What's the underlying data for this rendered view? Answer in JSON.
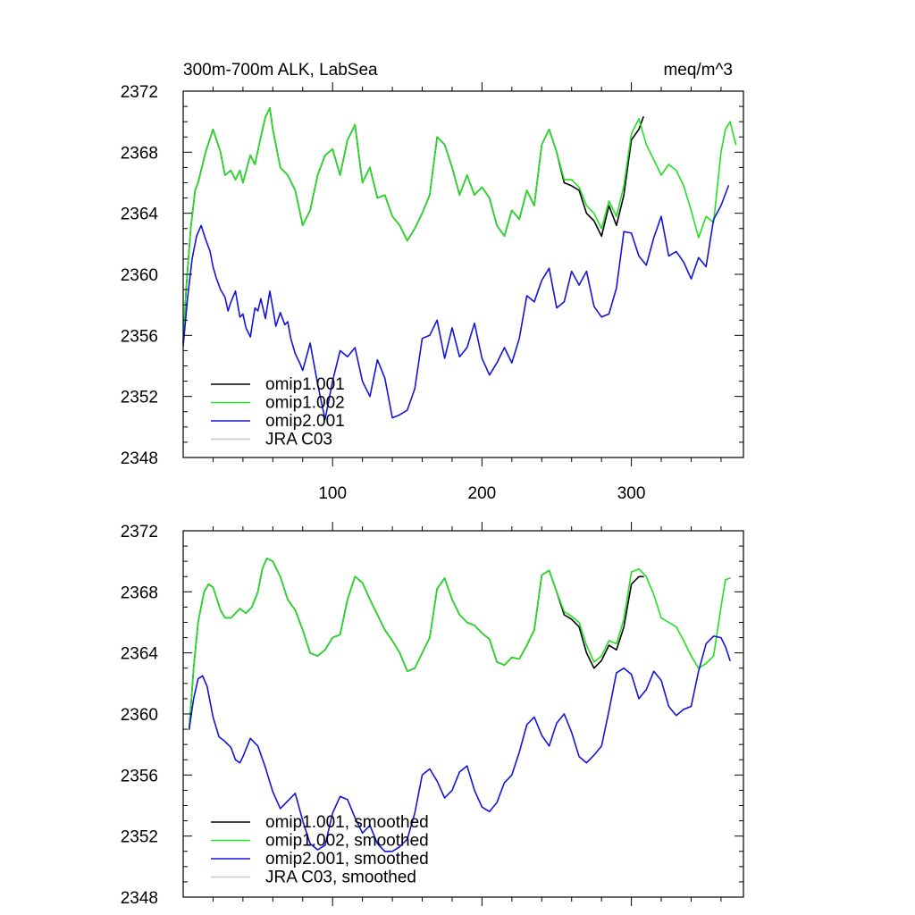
{
  "chart_data": [
    {
      "type": "line",
      "title": "300m-700m ALK, LabSea",
      "units": "meq/m^3",
      "xlim": [
        0,
        375
      ],
      "ylim": [
        2348,
        2372
      ],
      "xticks": [
        100,
        200,
        300
      ],
      "xtick_labels": [
        "100",
        "200",
        "300"
      ],
      "yticks": [
        2348,
        2352,
        2356,
        2360,
        2364,
        2368,
        2372
      ],
      "ytick_labels": [
        "2348",
        "2352",
        "2356",
        "2360",
        "2364",
        "2368",
        "2372"
      ],
      "legend": "bottom-left",
      "series": [
        {
          "name": "omip1.001",
          "color": "#000000",
          "x": [
            0,
            2,
            5,
            8,
            10,
            15,
            20,
            25,
            28,
            32,
            35,
            38,
            40,
            45,
            48,
            52,
            55,
            58,
            60,
            65,
            70,
            75,
            80,
            85,
            90,
            95,
            100,
            105,
            110,
            115,
            120,
            125,
            130,
            135,
            140,
            145,
            150,
            155,
            160,
            165,
            170,
            175,
            180,
            185,
            190,
            195,
            200,
            205,
            210,
            215,
            220,
            225,
            230,
            235,
            240,
            245,
            250,
            255,
            260,
            265,
            270,
            275,
            280,
            285,
            290,
            295,
            300,
            305,
            308
          ],
          "y": [
            2355.5,
            2359,
            2363,
            2365.5,
            2366,
            2368,
            2369.5,
            2368,
            2366.5,
            2366.8,
            2366.2,
            2366.8,
            2366,
            2367.8,
            2367.2,
            2369,
            2370.3,
            2370.9,
            2369.5,
            2367,
            2366.5,
            2365.5,
            2363.2,
            2364.2,
            2366.5,
            2367.8,
            2368.2,
            2366.5,
            2368.8,
            2369.8,
            2366,
            2367,
            2365,
            2365.2,
            2363.8,
            2363.2,
            2362.2,
            2363,
            2364,
            2365.2,
            2369,
            2368.5,
            2367,
            2365.2,
            2366.5,
            2365.2,
            2365.7,
            2365,
            2363.2,
            2362.5,
            2364.2,
            2363.6,
            2365.5,
            2364.5,
            2368.5,
            2369.5,
            2368,
            2366,
            2365.8,
            2365.5,
            2364,
            2363.5,
            2362.5,
            2364.5,
            2363.2,
            2365.2,
            2368.8,
            2369.5,
            2370.3
          ]
        },
        {
          "name": "omip1.002",
          "color": "#22e022",
          "x": [
            0,
            2,
            5,
            8,
            10,
            15,
            20,
            25,
            28,
            32,
            35,
            38,
            40,
            45,
            48,
            52,
            55,
            58,
            60,
            65,
            70,
            75,
            80,
            85,
            90,
            95,
            100,
            105,
            110,
            115,
            120,
            125,
            130,
            135,
            140,
            145,
            150,
            155,
            160,
            165,
            170,
            175,
            180,
            185,
            190,
            195,
            200,
            205,
            210,
            215,
            220,
            225,
            230,
            235,
            240,
            245,
            250,
            255,
            260,
            265,
            270,
            275,
            280,
            285,
            290,
            295,
            300,
            305,
            310,
            315,
            320,
            325,
            330,
            335,
            340,
            345,
            350,
            355,
            360,
            363,
            366,
            370
          ],
          "y": [
            2355.5,
            2359,
            2363,
            2365.5,
            2366,
            2368,
            2369.5,
            2368,
            2366.5,
            2366.8,
            2366.2,
            2366.8,
            2366,
            2367.8,
            2367.2,
            2369,
            2370.3,
            2370.9,
            2369.5,
            2367,
            2366.5,
            2365.5,
            2363.2,
            2364.2,
            2366.5,
            2367.8,
            2368.2,
            2366.5,
            2368.8,
            2369.8,
            2366,
            2367,
            2365,
            2365.2,
            2363.8,
            2363.2,
            2362.2,
            2363,
            2364,
            2365.2,
            2369,
            2368.5,
            2367,
            2365.2,
            2366.5,
            2365.2,
            2365.7,
            2365,
            2363.2,
            2362.5,
            2364.2,
            2363.6,
            2365.5,
            2364.5,
            2368.5,
            2369.5,
            2368,
            2366.2,
            2366.2,
            2365.7,
            2364.5,
            2364,
            2363,
            2364.8,
            2363.8,
            2365.8,
            2369.2,
            2370.2,
            2368.5,
            2367.5,
            2366.5,
            2367.2,
            2366.8,
            2365.8,
            2364.2,
            2362.4,
            2363.8,
            2363.4,
            2368,
            2369.5,
            2370,
            2368.5
          ]
        },
        {
          "name": "omip2.001",
          "color": "#1414d8",
          "x": [
            0,
            3,
            6,
            9,
            12,
            15,
            18,
            20,
            22,
            25,
            28,
            30,
            32,
            35,
            38,
            40,
            42,
            45,
            48,
            50,
            52,
            55,
            58,
            60,
            62,
            65,
            68,
            70,
            72,
            75,
            78,
            80,
            85,
            90,
            95,
            100,
            105,
            110,
            115,
            120,
            125,
            130,
            135,
            140,
            145,
            150,
            155,
            160,
            165,
            170,
            175,
            180,
            185,
            190,
            195,
            200,
            205,
            210,
            215,
            220,
            225,
            230,
            235,
            240,
            245,
            250,
            255,
            260,
            265,
            270,
            275,
            280,
            285,
            290,
            295,
            300,
            305,
            310,
            315,
            320,
            325,
            330,
            335,
            340,
            345,
            350,
            355,
            360,
            365
          ],
          "y": [
            2355.3,
            2358.5,
            2361,
            2362.5,
            2363.2,
            2362.3,
            2361.5,
            2360.5,
            2359.8,
            2359,
            2358.5,
            2357.6,
            2358.2,
            2358.9,
            2357.2,
            2357.4,
            2356.5,
            2355.9,
            2357.8,
            2357.6,
            2358.4,
            2357.1,
            2358.9,
            2357.8,
            2356.6,
            2357.5,
            2356.7,
            2356.9,
            2355.8,
            2354.8,
            2354.2,
            2353.7,
            2355.5,
            2352.8,
            2350.5,
            2353,
            2355,
            2354.6,
            2355.2,
            2353,
            2352,
            2354.4,
            2353.2,
            2350.6,
            2350.8,
            2351.1,
            2352.5,
            2355.8,
            2356,
            2357,
            2354.5,
            2356.5,
            2354.6,
            2355.2,
            2356.8,
            2354.5,
            2353.4,
            2354.2,
            2355.2,
            2354.2,
            2355.8,
            2358.6,
            2358.2,
            2359.6,
            2360.4,
            2357.8,
            2358.2,
            2360.2,
            2359.3,
            2360.2,
            2357.9,
            2357.2,
            2357.4,
            2359.1,
            2362.8,
            2362.7,
            2361.2,
            2360.6,
            2362.4,
            2363.8,
            2361.2,
            2361.5,
            2360.8,
            2359.7,
            2361.1,
            2360.5,
            2363.6,
            2364.5,
            2365.8
          ]
        },
        {
          "name": "JRA C03",
          "color": "#c8c8c8",
          "x": [],
          "y": []
        }
      ]
    },
    {
      "type": "line",
      "title": "",
      "units": "",
      "xlim": [
        0,
        375
      ],
      "ylim": [
        2348,
        2372
      ],
      "xticks": [
        100,
        200,
        300
      ],
      "xtick_labels": [],
      "yticks": [
        2348,
        2352,
        2356,
        2360,
        2364,
        2368,
        2372
      ],
      "ytick_labels": [
        "2348",
        "2352",
        "2356",
        "2360",
        "2364",
        "2368",
        "2372"
      ],
      "legend": "bottom-left",
      "series": [
        {
          "name": "omip1.001, smoothed",
          "color": "#000000",
          "x": [
            4,
            7,
            10,
            14,
            17,
            20,
            25,
            28,
            32,
            35,
            38,
            42,
            46,
            50,
            53,
            56,
            60,
            65,
            70,
            75,
            80,
            85,
            90,
            95,
            100,
            105,
            110,
            115,
            120,
            125,
            130,
            135,
            140,
            145,
            150,
            155,
            160,
            165,
            170,
            175,
            180,
            185,
            190,
            195,
            200,
            205,
            210,
            215,
            220,
            225,
            230,
            235,
            240,
            245,
            250,
            255,
            260,
            265,
            270,
            275,
            280,
            285,
            290,
            295,
            300,
            305,
            308
          ],
          "y": [
            2359,
            2363,
            2366,
            2368,
            2368.5,
            2368.3,
            2366.8,
            2366.3,
            2366.3,
            2366.6,
            2366.9,
            2366.6,
            2367,
            2368,
            2369.5,
            2370.2,
            2370,
            2369,
            2367.5,
            2366.8,
            2365.5,
            2364,
            2363.8,
            2364.2,
            2365,
            2365.2,
            2367.5,
            2369,
            2368.6,
            2367.5,
            2366.5,
            2365.5,
            2364.8,
            2364,
            2362.8,
            2363,
            2364,
            2365,
            2368.2,
            2368.9,
            2367.5,
            2366.5,
            2366,
            2365.8,
            2365.3,
            2364.9,
            2363.4,
            2363.2,
            2363.7,
            2363.6,
            2364.5,
            2365.5,
            2369.1,
            2369.4,
            2368,
            2366.5,
            2366.2,
            2365.7,
            2364,
            2363,
            2363.5,
            2364.5,
            2364.2,
            2365.7,
            2368.5,
            2369,
            2369
          ]
        },
        {
          "name": "omip1.002, smoothed",
          "color": "#22e022",
          "x": [
            4,
            7,
            10,
            14,
            17,
            20,
            25,
            28,
            32,
            35,
            38,
            42,
            46,
            50,
            53,
            56,
            60,
            65,
            70,
            75,
            80,
            85,
            90,
            95,
            100,
            105,
            110,
            115,
            120,
            125,
            130,
            135,
            140,
            145,
            150,
            155,
            160,
            165,
            170,
            175,
            180,
            185,
            190,
            195,
            200,
            205,
            210,
            215,
            220,
            225,
            230,
            235,
            240,
            245,
            250,
            255,
            260,
            265,
            270,
            275,
            280,
            285,
            290,
            295,
            300,
            305,
            310,
            315,
            320,
            325,
            330,
            335,
            340,
            345,
            350,
            355,
            360,
            363,
            366
          ],
          "y": [
            2359,
            2363,
            2366,
            2368,
            2368.5,
            2368.3,
            2366.8,
            2366.3,
            2366.3,
            2366.6,
            2366.9,
            2366.6,
            2367,
            2368,
            2369.5,
            2370.2,
            2370,
            2369,
            2367.5,
            2366.8,
            2365.5,
            2364,
            2363.8,
            2364.2,
            2365,
            2365.2,
            2367.5,
            2369,
            2368.6,
            2367.5,
            2366.5,
            2365.5,
            2364.8,
            2364,
            2362.8,
            2363,
            2364,
            2365,
            2368.2,
            2368.9,
            2367.5,
            2366.5,
            2366,
            2365.8,
            2365.3,
            2364.9,
            2363.4,
            2363.2,
            2363.7,
            2363.6,
            2364.5,
            2365.5,
            2369.1,
            2369.4,
            2368,
            2366.7,
            2366.4,
            2366,
            2364.5,
            2363.4,
            2363.8,
            2364.8,
            2364.6,
            2366.2,
            2369.3,
            2369.5,
            2369,
            2367.8,
            2366.3,
            2366,
            2365.7,
            2364.8,
            2363.8,
            2363,
            2363.3,
            2363.8,
            2367,
            2368.8,
            2368.9
          ]
        },
        {
          "name": "omip2.001, smoothed",
          "color": "#1414d8",
          "x": [
            4,
            7,
            10,
            13,
            16,
            20,
            24,
            28,
            32,
            35,
            38,
            40,
            45,
            50,
            55,
            60,
            65,
            70,
            75,
            80,
            85,
            90,
            95,
            100,
            105,
            110,
            115,
            120,
            125,
            130,
            135,
            140,
            145,
            150,
            155,
            160,
            165,
            170,
            175,
            180,
            185,
            190,
            195,
            200,
            205,
            210,
            215,
            220,
            225,
            230,
            235,
            240,
            245,
            250,
            255,
            260,
            265,
            270,
            275,
            280,
            285,
            290,
            295,
            300,
            305,
            310,
            315,
            320,
            325,
            330,
            335,
            340,
            345,
            350,
            355,
            360,
            363,
            366
          ],
          "y": [
            2359,
            2361,
            2362.3,
            2362.5,
            2361.8,
            2359.8,
            2358.5,
            2358.2,
            2357.8,
            2357,
            2356.8,
            2357.2,
            2358.4,
            2357.9,
            2356.5,
            2354.9,
            2353.8,
            2354.3,
            2354.8,
            2353,
            2351.5,
            2351.1,
            2351.4,
            2353.5,
            2354.6,
            2354.4,
            2353.2,
            2352.2,
            2352.7,
            2351.5,
            2351,
            2351,
            2351.3,
            2351.8,
            2353.5,
            2356,
            2356.4,
            2355.6,
            2354.5,
            2355,
            2356.2,
            2356.6,
            2355,
            2353.9,
            2353.6,
            2354.2,
            2355.5,
            2356,
            2357.5,
            2359.3,
            2359.8,
            2358.6,
            2357.9,
            2359.4,
            2360,
            2358.8,
            2357.2,
            2356.8,
            2357.3,
            2357.9,
            2360.2,
            2362.7,
            2363,
            2362.6,
            2361,
            2361.6,
            2362.8,
            2362.2,
            2360.5,
            2359.9,
            2360.3,
            2360.5,
            2362.8,
            2364.6,
            2365.1,
            2365,
            2364.4,
            2363.5
          ]
        },
        {
          "name": "JRA C03, smoothed",
          "color": "#c8c8c8",
          "x": [],
          "y": []
        }
      ]
    }
  ]
}
